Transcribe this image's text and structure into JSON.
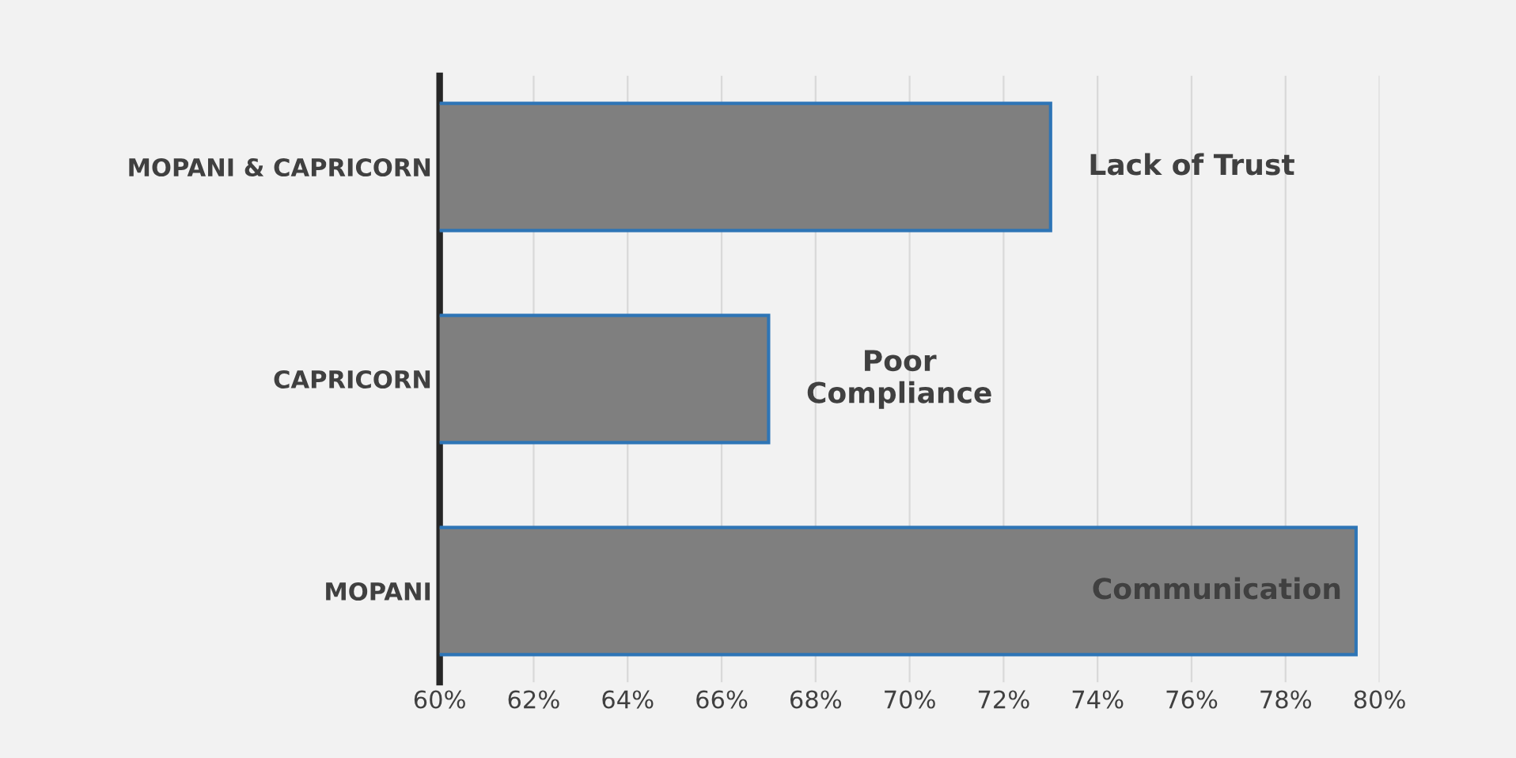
{
  "chart_data": {
    "type": "bar",
    "orientation": "horizontal",
    "categories": [
      "MOPANI & CAPRICORN",
      "CAPRICORN",
      "MOPANI"
    ],
    "values": [
      73,
      67,
      79.5
    ],
    "color": "#7f7f7f",
    "xlim": [
      60,
      80
    ],
    "xticks": [
      {
        "value": 60,
        "label": "60%"
      },
      {
        "value": 62,
        "label": "62%"
      },
      {
        "value": 64,
        "label": "64%"
      },
      {
        "value": 66,
        "label": "66%"
      },
      {
        "value": 68,
        "label": "68%"
      },
      {
        "value": 70,
        "label": "70%"
      },
      {
        "value": 72,
        "label": "72%"
      },
      {
        "value": 74,
        "label": "74%"
      },
      {
        "value": 76,
        "label": "76%"
      },
      {
        "value": 78,
        "label": "78%"
      },
      {
        "value": 80,
        "label": "80%"
      }
    ],
    "grid": "x",
    "annotations": [
      {
        "text": "Lack of Trust",
        "x": 73,
        "y": "MOPANI & CAPRICORN"
      },
      {
        "text": "Poor\nCompliance",
        "x": 67,
        "y": "CAPRICORN"
      },
      {
        "text": "Communication",
        "x": 79.5,
        "y": "MOPANI"
      }
    ]
  }
}
